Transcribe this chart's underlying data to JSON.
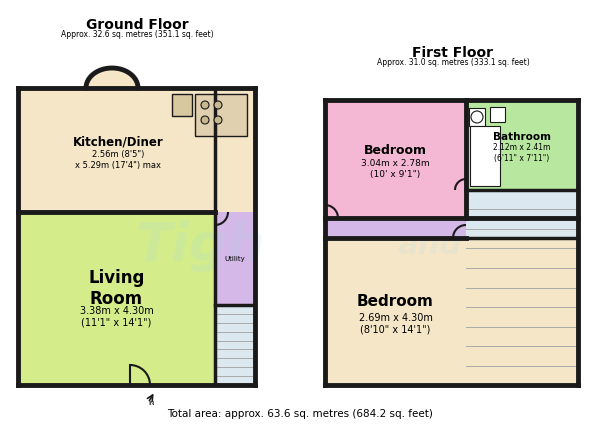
{
  "bg_color": "#ffffff",
  "wall_color": "#1a1a1a",
  "wall_lw": 3.5,
  "ground_floor_title": "Ground Floor",
  "ground_floor_subtitle": "Approx. 32.6 sq. metres (351.1 sq. feet)",
  "first_floor_title": "First Floor",
  "first_floor_subtitle": "Approx. 31.0 sq. metres (333.1 sq. feet)",
  "total_area": "Total area: approx. 63.6 sq. metres (684.2 sq. feet)",
  "kitchen_color": "#f5e6c8",
  "kitchen_label": "Kitchen/Diner",
  "kitchen_dims": "2.56m (8'5\")\nx 5.29m (17'4\") max",
  "living_color": "#d4ed8a",
  "living_label": "Living\nRoom",
  "living_dims": "3.38m x 4.30m\n(11'1\" x 14'1\")",
  "utility_color": "#d4b8e8",
  "utility_label": "Utility",
  "bedroom1_color": "#f5b8d4",
  "bedroom1_label": "Bedroom",
  "bedroom1_dims": "3.04m x 2.78m\n(10' x 9'1\")",
  "bathroom_color": "#b8e8a0",
  "bathroom_label": "Bathroom",
  "bathroom_dims": "2.12m x 2.41m\n(6'11\" x 7'11\")",
  "landing_color": "#d4b8e8",
  "bedroom2_color": "#f5e6c8",
  "bedroom2_label": "Bedroom",
  "bedroom2_dims": "2.69m x 4.30m\n(8'10\" x 14'1\")",
  "stair_color": "#dce8f0"
}
